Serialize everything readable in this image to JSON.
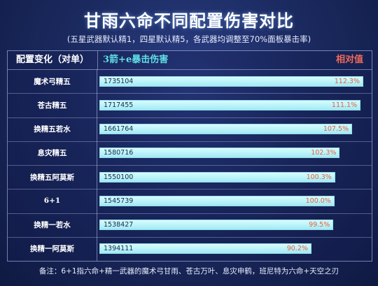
{
  "title": "甘雨六命不同配置伤害对比",
  "subtitle": "(五星武器默认精1，四星默认精5，各武器均调整至70%面板暴击率)",
  "header": {
    "config_label": "配置变化（对单）",
    "damage_label": "3箭+e暴击伤害",
    "relative_label": "相对值"
  },
  "note": "备注：6+1指六命+精一武器的魔术弓甘雨、苍古万叶、息灾申鹤，班尼特为六命+天空之刃",
  "colors": {
    "bar": "#b7f2f9",
    "percent": "#e8603c",
    "damage_header": "#5fe0e6",
    "relative_header": "#f06a5a"
  },
  "chart_data": {
    "type": "bar",
    "orientation": "horizontal",
    "categories": [
      "魔术弓精五",
      "苍古精五",
      "换精五若水",
      "息灾精五",
      "换精五阿莫斯",
      "6+1",
      "换精一若水",
      "换精一阿莫斯"
    ],
    "values": [
      1735104,
      1717455,
      1661764,
      1580716,
      1550100,
      1545739,
      1538427,
      1394111
    ],
    "labels": [
      "1735104",
      "1717455",
      "1661764",
      "1580716",
      "1550100",
      "1545739",
      "1538427",
      "1394111"
    ],
    "relative": [
      "112.3%",
      "111.1%",
      "107.5%",
      "102.3%",
      "100.3%",
      "100.0%",
      "99.5%",
      "90.2%"
    ]
  }
}
